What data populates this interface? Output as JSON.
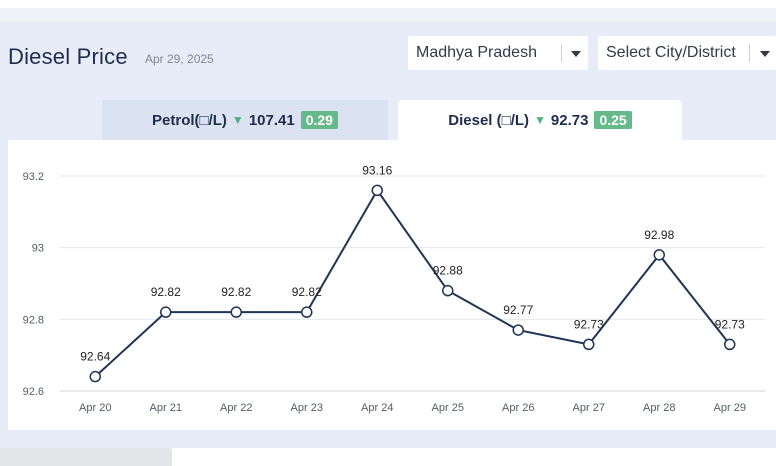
{
  "header": {
    "title": "Diesel Price",
    "date": "Apr 29, 2025"
  },
  "filters": {
    "state_selected": "Madhya Pradesh",
    "city_placeholder": "Select City/District"
  },
  "tabs": [
    {
      "label": "Petrol(□/L)",
      "price": "107.41",
      "change": "0.29",
      "direction": "down",
      "active": false
    },
    {
      "label": "Diesel (□/L)",
      "price": "92.73",
      "change": "0.25",
      "direction": "down",
      "active": true
    }
  ],
  "colors": {
    "line": "#1f3556",
    "badge": "#66b98a",
    "arrow": "#4fb085"
  },
  "chart_data": {
    "type": "line",
    "categories": [
      "Apr 20",
      "Apr 21",
      "Apr 22",
      "Apr 23",
      "Apr 24",
      "Apr 25",
      "Apr 26",
      "Apr 27",
      "Apr 28",
      "Apr 29"
    ],
    "series": [
      {
        "values": [
          92.64,
          92.82,
          92.82,
          92.82,
          93.16,
          92.88,
          92.77,
          92.73,
          92.98,
          92.73
        ]
      }
    ],
    "data_labels": [
      "92.64",
      "92.82",
      "92.82",
      "92.82",
      "93.16",
      "92.88",
      "92.77",
      "92.73",
      "92.98",
      "92.73"
    ],
    "y_ticks": [
      "92.6",
      "92.8",
      "93",
      "93.2"
    ],
    "y_tick_values": [
      92.6,
      92.8,
      93.0,
      93.2
    ],
    "ylim": [
      92.6,
      93.2
    ],
    "grid": true,
    "legend": "none"
  }
}
